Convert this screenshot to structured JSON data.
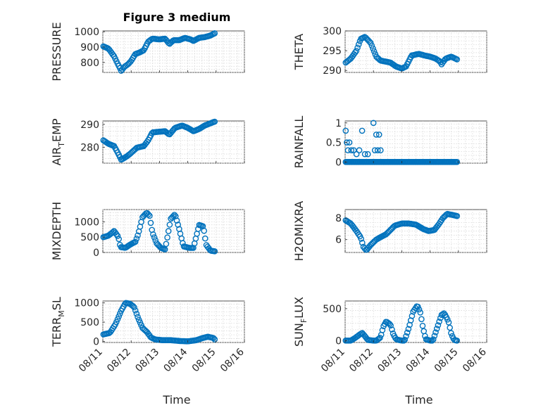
{
  "figure_title": "Figure 3 medium",
  "xlabel": "Time",
  "colors": {
    "marker": "#0072bd",
    "axis": "#262626",
    "grid": "#d4d4d4"
  },
  "chart_data": [
    {
      "type": "scatter",
      "ylabel": "PRESSURE",
      "x_ticks": [
        "08/11",
        "08/12",
        "08/13",
        "08/14",
        "08/15",
        "08/16"
      ],
      "xlim": [
        0,
        5
      ],
      "ylim": [
        735,
        1005
      ],
      "y_ticks": [
        800,
        900,
        1000
      ],
      "keypoints": [
        [
          0.02,
          905
        ],
        [
          0.2,
          890
        ],
        [
          0.4,
          840
        ],
        [
          0.5,
          800
        ],
        [
          0.6,
          765
        ],
        [
          0.65,
          745
        ],
        [
          0.75,
          770
        ],
        [
          0.9,
          790
        ],
        [
          1.0,
          810
        ],
        [
          1.15,
          855
        ],
        [
          1.3,
          865
        ],
        [
          1.45,
          880
        ],
        [
          1.6,
          935
        ],
        [
          1.75,
          955
        ],
        [
          2.0,
          950
        ],
        [
          2.2,
          955
        ],
        [
          2.35,
          920
        ],
        [
          2.5,
          945
        ],
        [
          2.7,
          945
        ],
        [
          2.9,
          960
        ],
        [
          3.1,
          950
        ],
        [
          3.2,
          940
        ],
        [
          3.4,
          960
        ],
        [
          3.6,
          965
        ],
        [
          3.8,
          975
        ],
        [
          3.95,
          990
        ]
      ],
      "grid": true
    },
    {
      "type": "scatter",
      "ylabel": "THETA",
      "x_ticks": [
        "08/11",
        "08/12",
        "08/13",
        "08/14",
        "08/15",
        "08/16"
      ],
      "xlim": [
        0,
        5
      ],
      "ylim": [
        289.5,
        300
      ],
      "y_ticks": [
        290,
        295,
        300
      ],
      "keypoints": [
        [
          0.02,
          292
        ],
        [
          0.2,
          293
        ],
        [
          0.4,
          295
        ],
        [
          0.55,
          298
        ],
        [
          0.7,
          298.5
        ],
        [
          0.9,
          297
        ],
        [
          1.1,
          293.5
        ],
        [
          1.25,
          292.5
        ],
        [
          1.4,
          292.3
        ],
        [
          1.6,
          292
        ],
        [
          1.8,
          291
        ],
        [
          2.0,
          290.5
        ],
        [
          2.15,
          291
        ],
        [
          2.35,
          293.8
        ],
        [
          2.6,
          294.2
        ],
        [
          2.8,
          293.8
        ],
        [
          3.0,
          293.5
        ],
        [
          3.2,
          293
        ],
        [
          3.35,
          292.3
        ],
        [
          3.4,
          291.5
        ],
        [
          3.55,
          293
        ],
        [
          3.75,
          293.5
        ],
        [
          3.95,
          292.8
        ]
      ],
      "grid": true
    },
    {
      "type": "scatter",
      "ylabel": "AIR_TEMP",
      "x_ticks": [
        "08/11",
        "08/12",
        "08/13",
        "08/14",
        "08/15",
        "08/16"
      ],
      "xlim": [
        0,
        5
      ],
      "ylim": [
        273,
        291.5
      ],
      "y_ticks": [
        280,
        290
      ],
      "keypoints": [
        [
          0.02,
          283
        ],
        [
          0.2,
          281.5
        ],
        [
          0.4,
          280.5
        ],
        [
          0.55,
          277
        ],
        [
          0.65,
          274.5
        ],
        [
          0.85,
          276
        ],
        [
          1.0,
          277.5
        ],
        [
          1.2,
          279.8
        ],
        [
          1.45,
          280.5
        ],
        [
          1.6,
          283
        ],
        [
          1.75,
          286.5
        ],
        [
          2.0,
          286.8
        ],
        [
          2.2,
          287
        ],
        [
          2.35,
          285.5
        ],
        [
          2.55,
          288.5
        ],
        [
          2.8,
          289.5
        ],
        [
          3.0,
          288.5
        ],
        [
          3.2,
          287
        ],
        [
          3.4,
          288
        ],
        [
          3.6,
          289.5
        ],
        [
          3.8,
          290.5
        ],
        [
          3.95,
          291.2
        ]
      ],
      "grid": true
    },
    {
      "type": "scatter",
      "ylabel": "RAINFALL",
      "x_ticks": [
        "08/11",
        "08/12",
        "08/13",
        "08/14",
        "08/15",
        "08/16"
      ],
      "xlim": [
        0,
        5
      ],
      "ylim": [
        -0.03,
        1.05
      ],
      "y_ticks": [
        0,
        0.5,
        1
      ],
      "keypoints": [
        [
          0.02,
          0.8
        ],
        [
          0.06,
          0.5
        ],
        [
          0.1,
          0.3
        ],
        [
          0.15,
          0.5
        ],
        [
          0.22,
          0.3
        ],
        [
          0.3,
          0.3
        ],
        [
          0.4,
          0.2
        ],
        [
          0.5,
          0.3
        ],
        [
          0.6,
          0.8
        ],
        [
          0.7,
          0.2
        ],
        [
          0.8,
          0.2
        ],
        [
          1.0,
          1.0
        ],
        [
          1.05,
          0.3
        ],
        [
          1.1,
          0.7
        ],
        [
          1.15,
          0.3
        ],
        [
          1.2,
          0.7
        ],
        [
          1.25,
          0.3
        ]
      ],
      "zero_range": [
        0.02,
        3.95
      ],
      "grid": true
    },
    {
      "type": "scatter",
      "ylabel": "MIXDEPTH",
      "x_ticks": [
        "08/11",
        "08/12",
        "08/13",
        "08/14",
        "08/15",
        "08/16"
      ],
      "xlim": [
        0,
        5
      ],
      "ylim": [
        0,
        1400
      ],
      "y_ticks": [
        0,
        500,
        1000
      ],
      "keypoints": [
        [
          0.02,
          500
        ],
        [
          0.2,
          550
        ],
        [
          0.4,
          700
        ],
        [
          0.55,
          500
        ],
        [
          0.62,
          180
        ],
        [
          0.8,
          150
        ],
        [
          0.95,
          250
        ],
        [
          1.05,
          300
        ],
        [
          1.15,
          350
        ],
        [
          1.25,
          600
        ],
        [
          1.4,
          1150
        ],
        [
          1.55,
          1300
        ],
        [
          1.65,
          1200
        ],
        [
          1.75,
          650
        ],
        [
          1.9,
          300
        ],
        [
          2.05,
          150
        ],
        [
          2.2,
          100
        ],
        [
          2.4,
          1100
        ],
        [
          2.55,
          1250
        ],
        [
          2.7,
          750
        ],
        [
          2.85,
          200
        ],
        [
          3.05,
          150
        ],
        [
          3.2,
          150
        ],
        [
          3.4,
          900
        ],
        [
          3.55,
          850
        ],
        [
          3.65,
          250
        ],
        [
          3.8,
          60
        ],
        [
          3.95,
          40
        ]
      ],
      "grid": true
    },
    {
      "type": "scatter",
      "ylabel": "H2OMIXRA",
      "x_ticks": [
        "08/11",
        "08/12",
        "08/13",
        "08/14",
        "08/15",
        "08/16"
      ],
      "xlim": [
        0,
        5
      ],
      "ylim": [
        4.8,
        8.8
      ],
      "y_ticks": [
        6,
        8
      ],
      "keypoints": [
        [
          0.02,
          7.8
        ],
        [
          0.2,
          7.5
        ],
        [
          0.4,
          6.8
        ],
        [
          0.55,
          6.2
        ],
        [
          0.65,
          5.3
        ],
        [
          0.75,
          5.0
        ],
        [
          0.9,
          5.5
        ],
        [
          1.1,
          6.0
        ],
        [
          1.3,
          6.3
        ],
        [
          1.45,
          6.5
        ],
        [
          1.6,
          6.9
        ],
        [
          1.75,
          7.3
        ],
        [
          2.0,
          7.5
        ],
        [
          2.25,
          7.5
        ],
        [
          2.5,
          7.4
        ],
        [
          2.75,
          7.0
        ],
        [
          2.95,
          6.8
        ],
        [
          3.15,
          6.9
        ],
        [
          3.3,
          7.4
        ],
        [
          3.45,
          8.0
        ],
        [
          3.6,
          8.4
        ],
        [
          3.8,
          8.3
        ],
        [
          3.95,
          8.2
        ]
      ],
      "grid": true
    },
    {
      "type": "scatter",
      "ylabel": "TERR_MSL",
      "x_ticks": [
        "08/11",
        "08/12",
        "08/13",
        "08/14",
        "08/15",
        "08/16"
      ],
      "xlim": [
        0,
        5
      ],
      "ylim": [
        -30,
        1050
      ],
      "y_ticks": [
        0,
        500,
        1000
      ],
      "keypoints": [
        [
          0.02,
          180
        ],
        [
          0.25,
          220
        ],
        [
          0.45,
          450
        ],
        [
          0.65,
          800
        ],
        [
          0.8,
          1000
        ],
        [
          0.95,
          980
        ],
        [
          1.1,
          900
        ],
        [
          1.25,
          600
        ],
        [
          1.4,
          350
        ],
        [
          1.55,
          250
        ],
        [
          1.7,
          100
        ],
        [
          1.85,
          50
        ],
        [
          2.1,
          30
        ],
        [
          2.4,
          30
        ],
        [
          2.7,
          10
        ],
        [
          3.0,
          0
        ],
        [
          3.3,
          30
        ],
        [
          3.5,
          80
        ],
        [
          3.7,
          120
        ],
        [
          3.9,
          90
        ],
        [
          3.95,
          50
        ]
      ],
      "grid": true
    },
    {
      "type": "scatter",
      "ylabel": "SUN_FLUX",
      "x_ticks": [
        "08/11",
        "08/12",
        "08/13",
        "08/14",
        "08/15",
        "08/16"
      ],
      "xlim": [
        0,
        5
      ],
      "ylim": [
        -30,
        620
      ],
      "y_ticks": [
        0,
        500
      ],
      "keypoints": [
        [
          0.02,
          0
        ],
        [
          0.2,
          0
        ],
        [
          0.35,
          40
        ],
        [
          0.5,
          90
        ],
        [
          0.6,
          120
        ],
        [
          0.68,
          80
        ],
        [
          0.8,
          10
        ],
        [
          1.0,
          0
        ],
        [
          1.1,
          0
        ],
        [
          1.25,
          50
        ],
        [
          1.35,
          220
        ],
        [
          1.45,
          300
        ],
        [
          1.6,
          250
        ],
        [
          1.7,
          100
        ],
        [
          1.8,
          20
        ],
        [
          2.0,
          0
        ],
        [
          2.1,
          0
        ],
        [
          2.25,
          200
        ],
        [
          2.4,
          450
        ],
        [
          2.55,
          550
        ],
        [
          2.65,
          450
        ],
        [
          2.75,
          200
        ],
        [
          2.85,
          20
        ],
        [
          3.0,
          0
        ],
        [
          3.1,
          0
        ],
        [
          3.25,
          200
        ],
        [
          3.4,
          400
        ],
        [
          3.5,
          430
        ],
        [
          3.65,
          300
        ],
        [
          3.75,
          100
        ],
        [
          3.85,
          10
        ],
        [
          3.95,
          0
        ]
      ],
      "grid": true
    }
  ]
}
